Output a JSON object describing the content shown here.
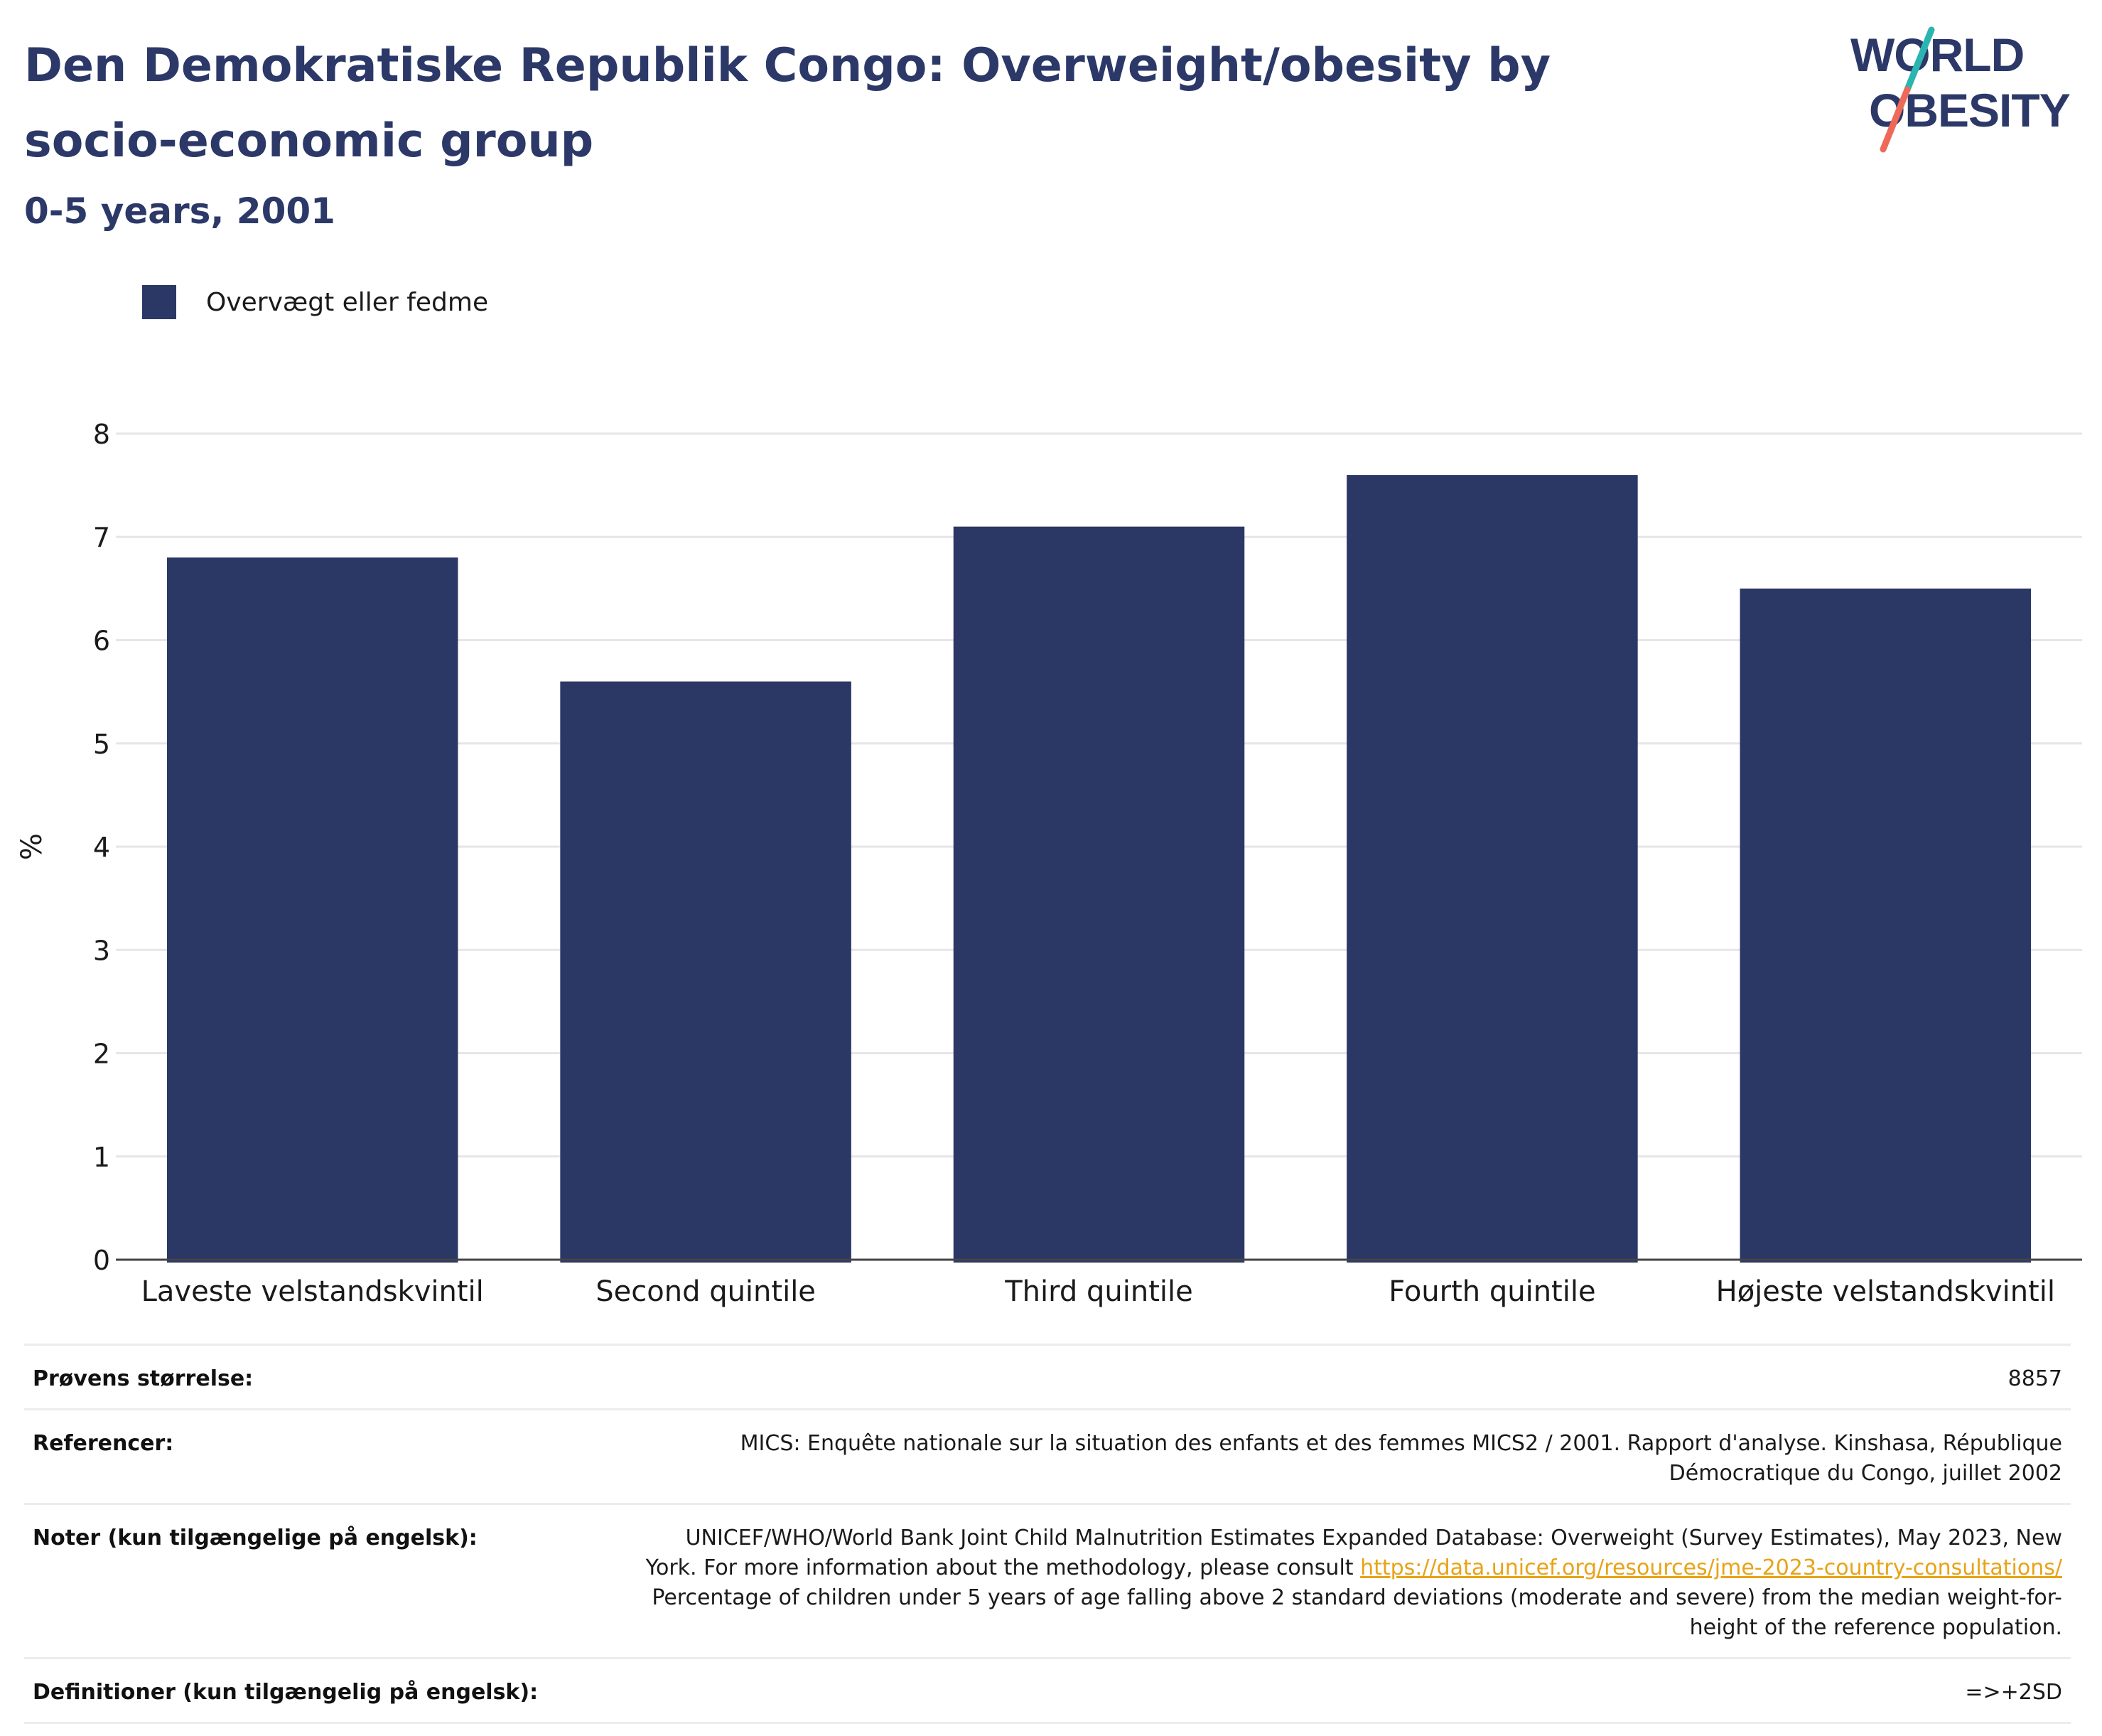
{
  "title": "Den Demokratiske Republik Congo: Overweight/obesity by socio-economic group",
  "subtitle": "0-5 years, 2001",
  "logo": {
    "line1": "WORLD",
    "line2": "OBESITY"
  },
  "colors": {
    "bar": "#2b3765",
    "title": "#2b3868",
    "link": "#e8a317",
    "logo_teal": "#2bb5b0",
    "logo_coral": "#ee6a58"
  },
  "chart_data": {
    "type": "bar",
    "categories": [
      "Laveste velstandskvintil",
      "Second quintile",
      "Third quintile",
      "Fourth quintile",
      "Højeste velstandskvintil"
    ],
    "series": [
      {
        "name": "Overvægt eller fedme",
        "values": [
          6.8,
          5.6,
          7.1,
          7.6,
          6.5
        ]
      }
    ],
    "ylabel": "%",
    "xlabel": "",
    "ylim": [
      0,
      8
    ],
    "yticks": [
      0,
      1,
      2,
      3,
      4,
      5,
      6,
      7,
      8
    ],
    "grid": true,
    "legend_position": "top-left"
  },
  "info": {
    "sample_label": "Prøvens størrelse:",
    "sample_value": "8857",
    "references_label": "Referencer:",
    "references_value": "MICS: Enquête nationale sur la situation des enfants et des femmes MICS2 / 2001. Rapport d'analyse. Kinshasa, République Démocratique du Congo, juillet 2002",
    "notes_label": "Noter (kun tilgængelige på engelsk):",
    "notes_text_1": "UNICEF/WHO/World Bank Joint Child Malnutrition Estimates Expanded Database: Overweight (Survey Estimates), May 2023, New York. For more information about the methodology, please consult ",
    "notes_link": "https://data.unicef.org/resources/jme-2023-country-consultations/",
    "notes_text_2": " Percentage of children under 5 years of age falling above 2 standard deviations (moderate and severe) from the median weight-for-height of the reference population.",
    "definitions_label": "Definitioner (kun tilgængelig på engelsk):",
    "definitions_value": "=>+2SD"
  }
}
